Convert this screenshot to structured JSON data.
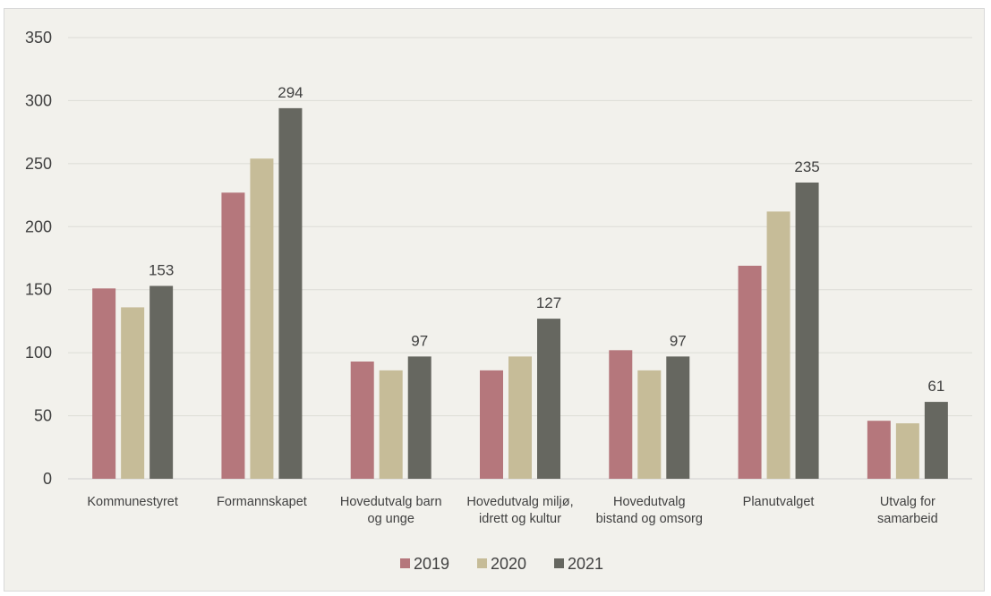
{
  "chart_data": {
    "type": "bar",
    "categories": [
      [
        "Kommunestyret"
      ],
      [
        "Formannskapet"
      ],
      [
        "Hovedutvalg barn",
        "og unge"
      ],
      [
        "Hovedutvalg miljø,",
        "idrett og kultur"
      ],
      [
        "Hovedutvalg",
        "bistand og omsorg"
      ],
      [
        "Planutvalget"
      ],
      [
        "Utvalg for",
        "samarbeid"
      ]
    ],
    "series": [
      {
        "name": "2019",
        "color": "#b5777c",
        "values": [
          151,
          227,
          93,
          86,
          102,
          169,
          46
        ]
      },
      {
        "name": "2020",
        "color": "#c6bc98",
        "values": [
          136,
          254,
          86,
          97,
          86,
          212,
          44
        ]
      },
      {
        "name": "2021",
        "color": "#666760",
        "values": [
          153,
          294,
          97,
          127,
          97,
          235,
          61
        ],
        "data_labels": true
      }
    ],
    "y_axis": {
      "min": 0,
      "max": 350,
      "step": 50,
      "ticks": [
        0,
        50,
        100,
        150,
        200,
        250,
        300,
        350
      ]
    },
    "grid": true,
    "legend": "bottom"
  }
}
